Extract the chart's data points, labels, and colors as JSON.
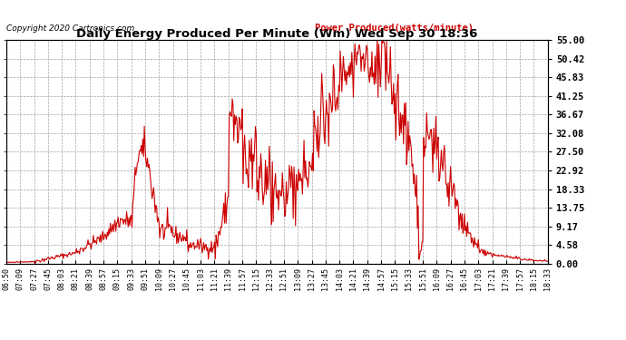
{
  "title": "Daily Energy Produced Per Minute (Wm) Wed Sep 30 18:36",
  "legend_label": "Power Produced(watts/minute)",
  "copyright": "Copyright 2020 Cartronics.com",
  "line_color": "#CC0000",
  "background_color": "#FFFFFF",
  "grid_color": "#999999",
  "ytick_values": [
    0.0,
    4.58,
    9.17,
    13.75,
    18.33,
    22.92,
    27.5,
    32.08,
    36.67,
    41.25,
    45.83,
    50.42,
    55.0
  ],
  "ytick_labels": [
    "0.00",
    "4.58",
    "9.17",
    "13.75",
    "18.33",
    "22.92",
    "27.50",
    "32.08",
    "36.67",
    "41.25",
    "45.83",
    "50.42",
    "55.00"
  ],
  "ymax": 55.0,
  "ymin": 0.0,
  "xtick_labels": [
    "06:50",
    "07:09",
    "07:27",
    "07:45",
    "08:03",
    "08:21",
    "08:39",
    "08:57",
    "09:15",
    "09:33",
    "09:51",
    "10:09",
    "10:27",
    "10:45",
    "11:03",
    "11:21",
    "11:39",
    "11:57",
    "12:15",
    "12:33",
    "12:51",
    "13:09",
    "13:27",
    "13:45",
    "14:03",
    "14:21",
    "14:39",
    "14:57",
    "15:15",
    "15:33",
    "15:51",
    "16:09",
    "16:27",
    "16:45",
    "17:03",
    "17:21",
    "17:39",
    "17:57",
    "18:15",
    "18:33"
  ]
}
